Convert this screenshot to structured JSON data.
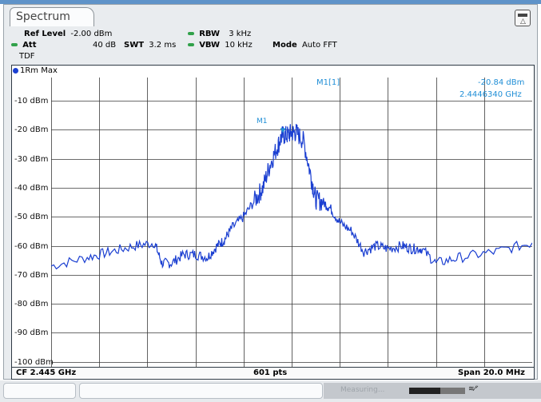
{
  "tab_title": "Spectrum",
  "settings": {
    "ref_level_label": "Ref Level",
    "ref_level_value": "-2.00 dBm",
    "att_label": "Att",
    "att_value": "40 dB",
    "swt_label": "SWT",
    "swt_value": "3.2 ms",
    "rbw_label": "RBW",
    "rbw_value": "3 kHz",
    "vbw_label": "VBW",
    "vbw_value": "10 kHz",
    "mode_label": "Mode",
    "mode_value": "Auto FFT",
    "tdf_label": "TDF"
  },
  "trace": {
    "label": "1Rm Max",
    "color": "#1b3fd1"
  },
  "marker": {
    "name": "M1[1]",
    "level": "-20.84 dBm",
    "frequency": "2.4446340 GHz",
    "tag": "M1",
    "color": "#1f8ed6"
  },
  "footer": {
    "center": "CF 2.445 GHz",
    "points": "601 pts",
    "span": "Span 20.0 MHz"
  },
  "status": {
    "progress": 0.55,
    "message": "Measuring...",
    "icon": "spectrum-activity-icon"
  },
  "chart_data": {
    "type": "line",
    "x_unit": "GHz",
    "y_unit": "dBm",
    "center_ghz": 2.445,
    "span_mhz": 20.0,
    "x_range": [
      2.435,
      2.455
    ],
    "y_ticks": [
      "-10 dBm",
      "-20 dBm",
      "-30 dBm",
      "-40 dBm",
      "-50 dBm",
      "-60 dBm",
      "-70 dBm",
      "-80 dBm",
      "-90 dBm",
      "-100 dBm"
    ],
    "y_tick_values": [
      -10,
      -20,
      -30,
      -40,
      -50,
      -60,
      -70,
      -80,
      -90,
      -100
    ],
    "ylim": [
      -102,
      -2
    ],
    "grid": true,
    "series": [
      {
        "name": "1Rm Max",
        "x": [
          2.435,
          2.4365,
          2.4375,
          2.4385,
          2.4393,
          2.4396,
          2.44,
          2.4405,
          2.441,
          2.4415,
          2.4419,
          2.4422,
          2.4425,
          2.443,
          2.4435,
          2.4438,
          2.4441,
          2.4444,
          2.4446,
          2.4448,
          2.445,
          2.4452,
          2.4455,
          2.4458,
          2.446,
          2.4463,
          2.4466,
          2.447,
          2.4475,
          2.448,
          2.4485,
          2.449,
          2.4496,
          2.45,
          2.4504,
          2.451,
          2.452,
          2.4535,
          2.455
        ],
        "y": [
          -67,
          -64,
          -62,
          -60,
          -59,
          -66,
          -66,
          -63,
          -63,
          -64,
          -60,
          -58,
          -54,
          -50,
          -44,
          -40,
          -32,
          -26,
          -22,
          -22,
          -21,
          -21,
          -24,
          -36,
          -44,
          -45,
          -47,
          -52,
          -55,
          -62,
          -60,
          -61,
          -60,
          -61,
          -61,
          -66,
          -64,
          -62,
          -59
        ]
      }
    ],
    "marker": {
      "x": 2.444634,
      "y": -20.84
    }
  }
}
